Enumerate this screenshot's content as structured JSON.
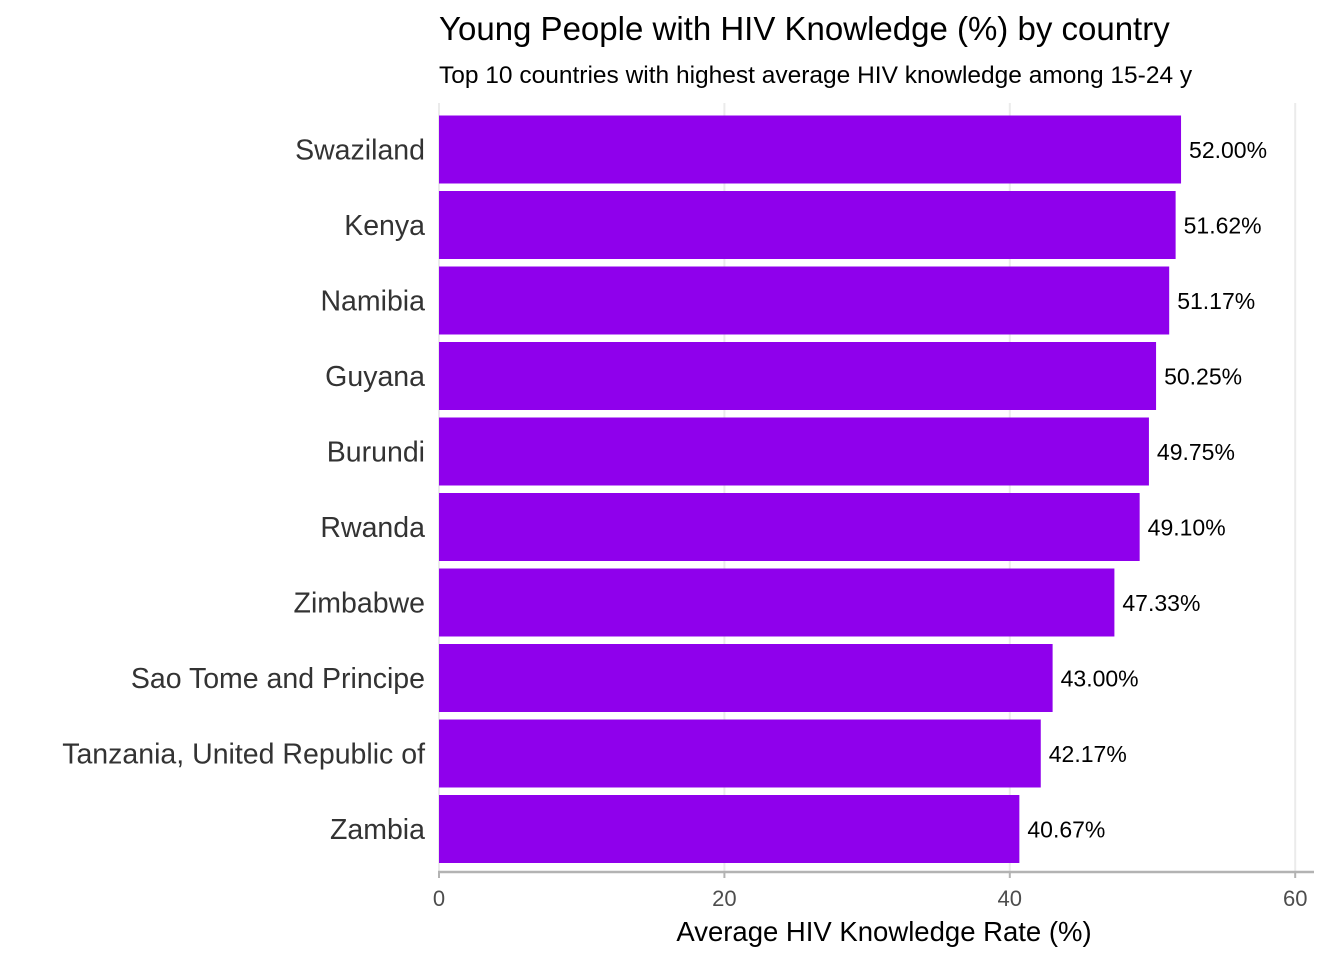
{
  "chart_data": {
    "type": "bar",
    "orientation": "horizontal",
    "title": "Young People with HIV Knowledge (%) by country",
    "subtitle": "Top 10 countries with highest average HIV knowledge among 15-24 y",
    "xlabel": "Average HIV Knowledge Rate (%)",
    "ylabel": "",
    "xlim": [
      0,
      62
    ],
    "x_ticks": [
      0,
      20,
      40,
      60
    ],
    "grid": "vertical-major",
    "legend": "none",
    "bar_color": "#8F00EC",
    "categories": [
      "Swaziland",
      "Kenya",
      "Namibia",
      "Guyana",
      "Burundi",
      "Rwanda",
      "Zimbabwe",
      "Sao Tome and Principe",
      "Tanzania, United Republic of",
      "Zambia"
    ],
    "values": [
      52.0,
      51.62,
      51.17,
      50.25,
      49.75,
      49.1,
      47.33,
      43.0,
      42.17,
      40.67
    ],
    "data_labels": [
      "52.00%",
      "51.62%",
      "51.17%",
      "50.25%",
      "49.75%",
      "49.10%",
      "47.33%",
      "43.00%",
      "42.17%",
      "40.67%"
    ]
  }
}
